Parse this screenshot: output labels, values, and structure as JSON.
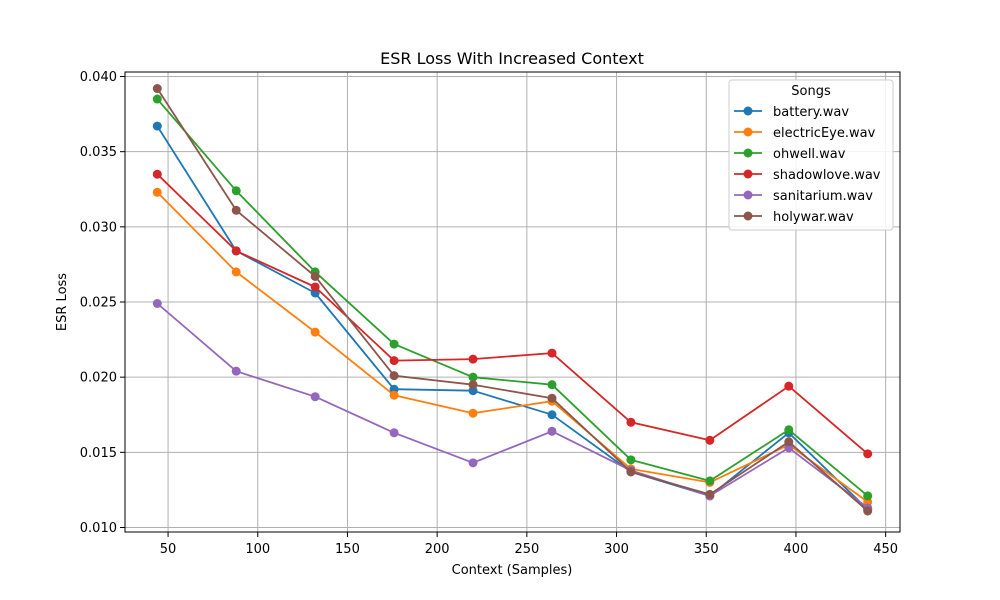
{
  "chart_data": {
    "type": "line",
    "title": "ESR Loss With Increased Context",
    "xlabel": "Context (Samples)",
    "ylabel": "ESR Loss",
    "xlim": [
      26,
      458
    ],
    "ylim": [
      0.0097,
      0.0403
    ],
    "x_ticks": [
      50,
      100,
      150,
      200,
      250,
      300,
      350,
      400,
      450
    ],
    "x_tick_labels": [
      "50",
      "100",
      "150",
      "200",
      "250",
      "300",
      "350",
      "400",
      "450"
    ],
    "y_ticks": [
      0.01,
      0.015,
      0.02,
      0.025,
      0.03,
      0.035,
      0.04
    ],
    "y_tick_labels": [
      "0.010",
      "0.015",
      "0.020",
      "0.025",
      "0.030",
      "0.035",
      "0.040"
    ],
    "grid": true,
    "legend": {
      "title": "Songs",
      "placement": "top-right"
    },
    "x": [
      44,
      88,
      132,
      176,
      220,
      264,
      308,
      352,
      396,
      440
    ],
    "series": [
      {
        "name": "battery.wav",
        "color": "#1f77b4",
        "values": [
          0.0367,
          0.0284,
          0.0256,
          0.0192,
          0.0191,
          0.0175,
          0.0137,
          0.0121,
          0.0163,
          0.0112
        ]
      },
      {
        "name": "electricEye.wav",
        "color": "#ff7f0e",
        "values": [
          0.0323,
          0.027,
          0.023,
          0.0188,
          0.0176,
          0.0184,
          0.0139,
          0.013,
          0.0155,
          0.0117
        ]
      },
      {
        "name": "ohwell.wav",
        "color": "#2ca02c",
        "values": [
          0.0385,
          0.0324,
          0.027,
          0.0222,
          0.02,
          0.0195,
          0.0145,
          0.0131,
          0.0165,
          0.0121
        ]
      },
      {
        "name": "shadowlove.wav",
        "color": "#d62728",
        "values": [
          0.0335,
          0.0284,
          0.026,
          0.0211,
          0.0212,
          0.0216,
          0.017,
          0.0158,
          0.0194,
          0.0149
        ]
      },
      {
        "name": "sanitarium.wav",
        "color": "#9467bd",
        "values": [
          0.0249,
          0.0204,
          0.0187,
          0.0163,
          0.0143,
          0.0164,
          0.0138,
          0.0121,
          0.0153,
          0.0113
        ]
      },
      {
        "name": "holywar.wav",
        "color": "#8c564b",
        "values": [
          0.0392,
          0.0311,
          0.0267,
          0.0201,
          0.0195,
          0.0186,
          0.0137,
          0.0122,
          0.0157,
          0.0111
        ]
      }
    ]
  }
}
